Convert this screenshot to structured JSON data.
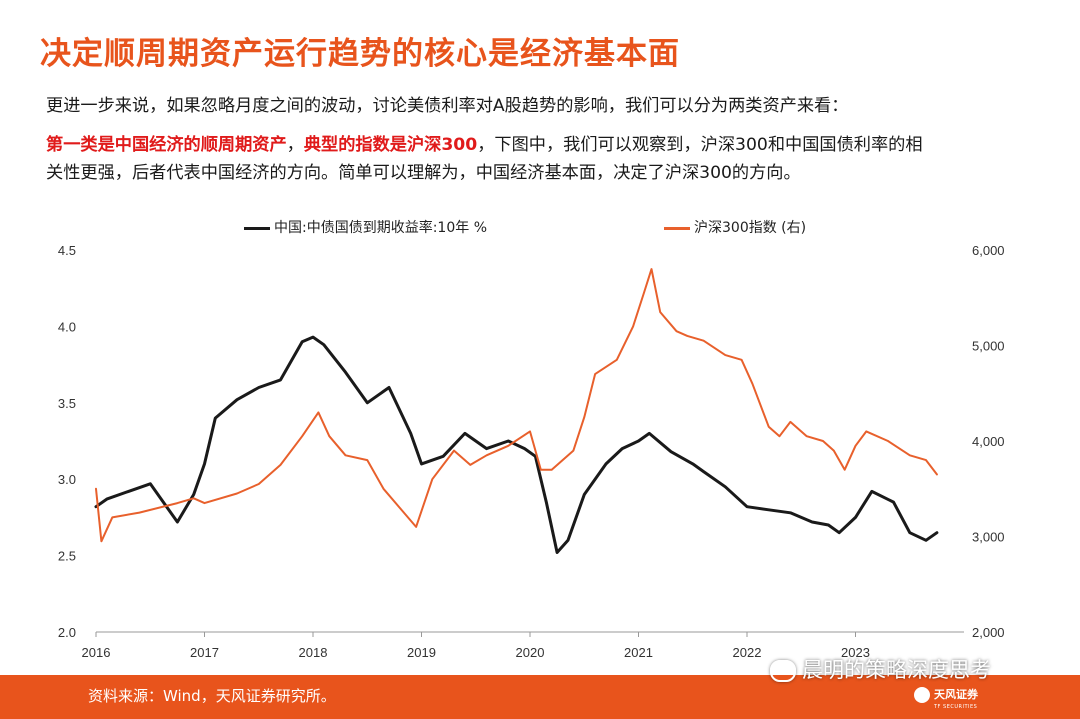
{
  "title": "决定顺周期资产运行趋势的核心是经济基本面",
  "paragraph1": "更进一步来说，如果忽略月度之间的波动，讨论美债利率对A股趋势的影响，我们可以分为两类资产来看：",
  "paragraph2_red1": "第一类是中国经济的顺周期资产",
  "paragraph2_comma": "，",
  "paragraph2_red2": "典型的指数是沪深300",
  "paragraph2_rest": "，下图中，我们可以观察到，沪深300和中国国债利率的相",
  "paragraph3": "关性更强，后者代表中国经济的方向。简单可以理解为，中国经济基本面，决定了沪深300的方向。",
  "footer_source": "资料来源：Wind，天风证券研究所。",
  "watermark_text": "晨明的策略深度思考",
  "logo_text": "天风证券",
  "logo_subtext": "TF SECURITIES",
  "chart_data": {
    "type": "line",
    "title": "",
    "xlabel": "",
    "ylabel": "",
    "x_ticks": [
      "2016",
      "2017",
      "2018",
      "2019",
      "2020",
      "2021",
      "2022",
      "2023"
    ],
    "y_left": {
      "ticks": [
        "2.0",
        "2.5",
        "3.0",
        "3.5",
        "4.0",
        "4.5"
      ],
      "range": [
        2.0,
        4.5
      ]
    },
    "y_right": {
      "ticks": [
        "2,000",
        "3,000",
        "4,000",
        "5,000",
        "6,000"
      ],
      "range": [
        2000,
        6000
      ]
    },
    "grid": false,
    "legend": "top",
    "series": [
      {
        "name": "中国:中债国债到期收益率:10年 %",
        "axis": "left",
        "color": "#1a1a1a",
        "x": [
          2016.0,
          2016.1,
          2016.3,
          2016.5,
          2016.75,
          2016.9,
          2017.0,
          2017.1,
          2017.3,
          2017.5,
          2017.7,
          2017.9,
          2018.0,
          2018.1,
          2018.3,
          2018.5,
          2018.7,
          2018.9,
          2019.0,
          2019.2,
          2019.4,
          2019.6,
          2019.8,
          2019.95,
          2020.05,
          2020.15,
          2020.25,
          2020.35,
          2020.5,
          2020.7,
          2020.85,
          2021.0,
          2021.1,
          2021.3,
          2021.5,
          2021.6,
          2021.8,
          2022.0,
          2022.2,
          2022.4,
          2022.6,
          2022.75,
          2022.85,
          2023.0,
          2023.15,
          2023.35,
          2023.5,
          2023.65,
          2023.75
        ],
        "y": [
          2.82,
          2.87,
          2.92,
          2.97,
          2.72,
          2.9,
          3.1,
          3.4,
          3.52,
          3.6,
          3.65,
          3.9,
          3.93,
          3.88,
          3.7,
          3.5,
          3.6,
          3.3,
          3.1,
          3.15,
          3.3,
          3.2,
          3.25,
          3.2,
          3.15,
          2.85,
          2.52,
          2.6,
          2.9,
          3.1,
          3.2,
          3.25,
          3.3,
          3.18,
          3.1,
          3.05,
          2.95,
          2.82,
          2.8,
          2.78,
          2.72,
          2.7,
          2.65,
          2.75,
          2.92,
          2.85,
          2.65,
          2.6,
          2.65
        ]
      },
      {
        "name": "沪深300指数 (右)",
        "axis": "right",
        "color": "#e8602c",
        "x": [
          2016.0,
          2016.05,
          2016.15,
          2016.4,
          2016.75,
          2016.9,
          2017.0,
          2017.3,
          2017.5,
          2017.7,
          2017.9,
          2018.05,
          2018.15,
          2018.3,
          2018.5,
          2018.65,
          2018.8,
          2018.95,
          2019.1,
          2019.3,
          2019.45,
          2019.6,
          2019.8,
          2020.0,
          2020.1,
          2020.2,
          2020.4,
          2020.5,
          2020.6,
          2020.8,
          2020.95,
          2021.05,
          2021.12,
          2021.2,
          2021.35,
          2021.45,
          2021.6,
          2021.8,
          2021.95,
          2022.05,
          2022.2,
          2022.3,
          2022.4,
          2022.55,
          2022.7,
          2022.8,
          2022.9,
          2023.0,
          2023.1,
          2023.3,
          2023.5,
          2023.65,
          2023.75
        ],
        "y": [
          3500,
          2950,
          3200,
          3250,
          3350,
          3400,
          3350,
          3450,
          3550,
          3750,
          4050,
          4300,
          4050,
          3850,
          3800,
          3500,
          3300,
          3100,
          3600,
          3900,
          3750,
          3850,
          3950,
          4100,
          3700,
          3700,
          3900,
          4250,
          4700,
          4850,
          5200,
          5550,
          5800,
          5350,
          5150,
          5100,
          5050,
          4900,
          4850,
          4600,
          4150,
          4050,
          4200,
          4050,
          4000,
          3900,
          3700,
          3950,
          4100,
          4000,
          3850,
          3800,
          3650
        ]
      }
    ]
  }
}
